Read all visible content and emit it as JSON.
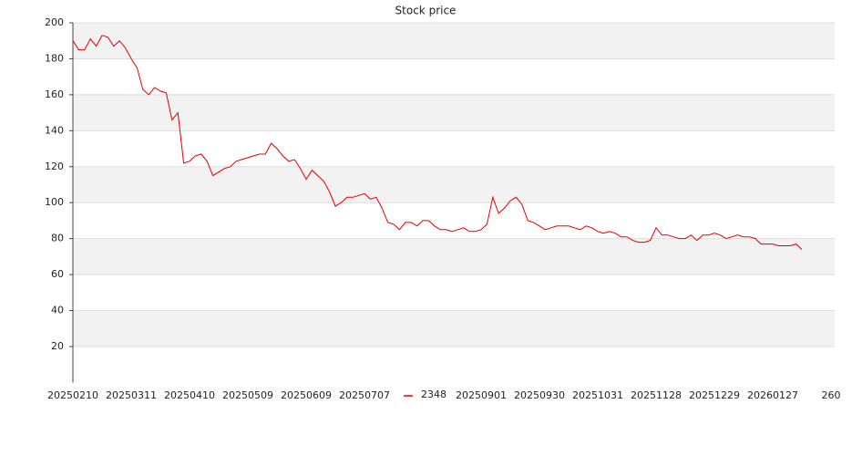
{
  "chart_data": {
    "type": "line",
    "title": "Stock price",
    "categories": [
      "20250210",
      null,
      null,
      null,
      null,
      null,
      null,
      null,
      null,
      null,
      "20250311",
      null,
      null,
      null,
      null,
      null,
      null,
      null,
      null,
      null,
      "20250410",
      null,
      null,
      null,
      null,
      null,
      null,
      null,
      null,
      null,
      "20250509",
      null,
      null,
      null,
      null,
      null,
      null,
      null,
      null,
      null,
      "20250609",
      null,
      null,
      null,
      null,
      null,
      null,
      null,
      null,
      null,
      "20250707",
      null,
      null,
      null,
      null,
      null,
      null,
      null,
      null,
      null,
      null,
      null,
      null,
      null,
      null,
      null,
      null,
      null,
      null,
      null,
      "20250901",
      null,
      null,
      null,
      null,
      null,
      null,
      null,
      null,
      null,
      "20250930",
      null,
      null,
      null,
      null,
      null,
      null,
      null,
      null,
      null,
      "20251031",
      null,
      null,
      null,
      null,
      null,
      null,
      null,
      null,
      null,
      "20251128",
      null,
      null,
      null,
      null,
      null,
      null,
      null,
      null,
      null,
      "20251229",
      null,
      null,
      null,
      null,
      null,
      null,
      null,
      null,
      null,
      "20260127",
      null,
      null,
      null,
      null,
      null,
      null,
      null,
      null,
      null,
      "260"
    ],
    "series": [
      {
        "name": "2348",
        "color": "#e00000",
        "values": [
          190,
          185,
          185,
          191,
          187,
          193,
          192,
          187,
          190,
          186,
          180,
          175,
          163,
          160,
          164,
          162,
          161,
          146,
          150,
          122,
          123,
          126,
          127,
          123,
          115,
          117,
          119,
          120,
          123,
          124,
          125,
          126,
          127,
          127,
          133,
          130,
          126,
          123,
          124,
          119,
          113,
          118,
          115,
          112,
          106,
          98,
          100,
          103,
          103,
          104,
          105,
          102,
          103,
          97,
          89,
          88,
          85,
          89,
          89,
          87,
          90,
          90,
          87,
          85,
          85,
          84,
          85,
          86,
          84,
          84,
          85,
          88,
          103,
          94,
          97,
          101,
          103,
          99,
          90,
          89,
          87,
          85,
          86,
          87,
          87,
          87,
          86,
          85,
          87,
          86,
          84,
          83,
          84,
          83,
          81,
          81,
          79,
          78,
          78,
          79,
          86,
          82,
          82,
          81,
          80,
          80,
          82,
          79,
          82,
          82,
          83,
          82,
          80,
          81,
          82,
          81,
          81,
          80,
          77,
          77,
          77,
          76,
          76,
          76,
          77,
          74,
          null,
          null,
          null,
          null,
          null
        ]
      }
    ],
    "ylim": [
      0,
      200
    ],
    "yticks": [
      20,
      40,
      60,
      80,
      100,
      120,
      140,
      160,
      180,
      200
    ],
    "grid": true,
    "alternating_bands": true,
    "legend": "bottom"
  }
}
